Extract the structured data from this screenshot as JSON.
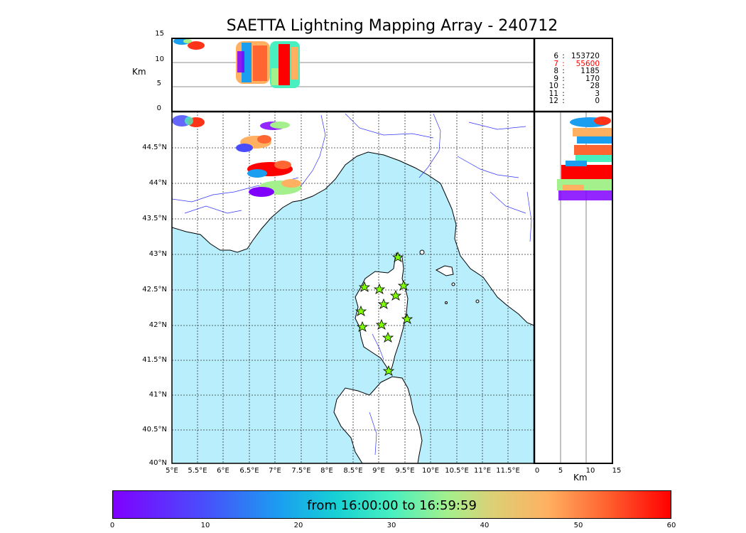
{
  "title": "SAETTA Lightning Mapping Array - 240712",
  "top_panel": {
    "ylabel": "Km",
    "yticks": [
      "15",
      "10",
      "5",
      "0"
    ]
  },
  "side_panel": {
    "xlabel": "Km",
    "xticks": [
      "0",
      "5",
      "10",
      "15"
    ]
  },
  "map": {
    "lat_ticks": [
      "44.5°N",
      "44°N",
      "43.5°N",
      "43°N",
      "42.5°N",
      "42°N",
      "41.5°N",
      "41°N",
      "40.5°N",
      "40°N"
    ],
    "lon_ticks": [
      "5°E",
      "5.5°E",
      "6°E",
      "6.5°E",
      "7°E",
      "7.5°E",
      "8°E",
      "8.5°E",
      "9°E",
      "9.5°E",
      "10°E",
      "10.5°E",
      "11°E",
      "11.5°E"
    ],
    "sea_color": "#b9eefd",
    "station_color": "#7fff00"
  },
  "stations_table": [
    {
      "stations": "6",
      "sep": ":",
      "count": "153720",
      "color": "#000000"
    },
    {
      "stations": "7",
      "sep": ":",
      "count": "55600",
      "color": "#ff0000"
    },
    {
      "stations": "8",
      "sep": ":",
      "count": "1185",
      "color": "#000000"
    },
    {
      "stations": "9",
      "sep": ":",
      "count": "170",
      "color": "#000000"
    },
    {
      "stations": "10",
      "sep": ":",
      "count": "28",
      "color": "#000000"
    },
    {
      "stations": "11",
      "sep": ":",
      "count": "3",
      "color": "#000000"
    },
    {
      "stations": "12",
      "sep": ":",
      "count": "0",
      "color": "#000000"
    }
  ],
  "colorbar": {
    "label": "from 16:00:00 to 16:59:59",
    "ticks": [
      "0",
      "10",
      "20",
      "30",
      "40",
      "50",
      "60"
    ]
  }
}
